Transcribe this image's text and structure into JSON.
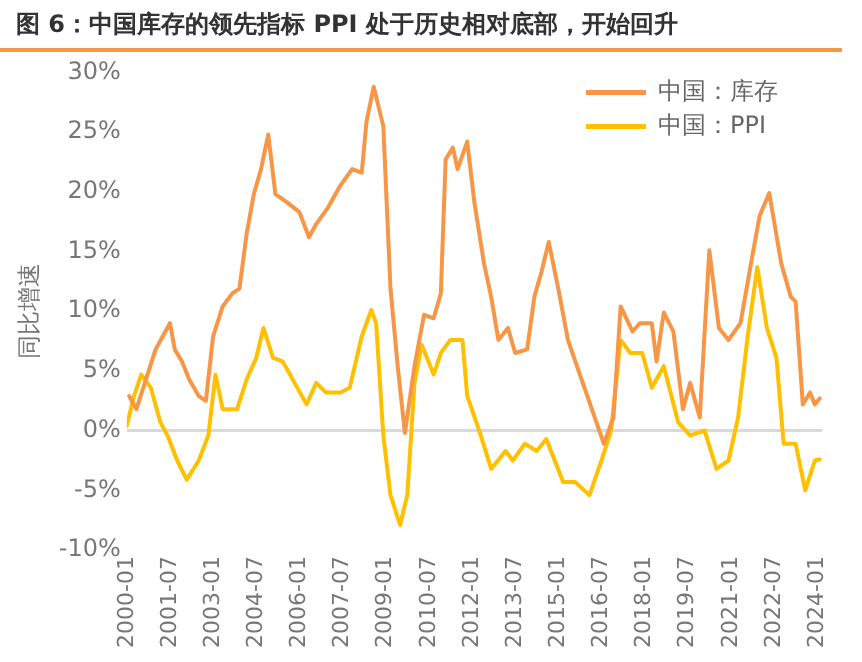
{
  "chart_data": {
    "type": "line",
    "title": "图 6：中国库存的领先指标 PPI 处于历史相对底部，开始回升",
    "ylabel": "同比增速",
    "legend": "top right",
    "marker": "none",
    "line_style": "solid",
    "xlim": [
      "2000-01",
      "2024-03"
    ],
    "xticks": [
      "2000-01",
      "2001-07",
      "2003-01",
      "2004-07",
      "2006-01",
      "2007-07",
      "2009-01",
      "2010-07",
      "2012-01",
      "2013-07",
      "2015-01",
      "2016-07",
      "2018-01",
      "2019-07",
      "2021-01",
      "2022-07",
      "2024-01"
    ],
    "ylim": [
      -10,
      30
    ],
    "yticks": [
      {
        "value": -10,
        "label": "-10%"
      },
      {
        "value": -5,
        "label": "-5%"
      },
      {
        "value": 0,
        "label": "0%"
      },
      {
        "value": 5,
        "label": "5%"
      },
      {
        "value": 10,
        "label": "10%"
      },
      {
        "value": 15,
        "label": "15%"
      },
      {
        "value": 20,
        "label": "20%"
      },
      {
        "value": 25,
        "label": "25%"
      },
      {
        "value": 30,
        "label": "30%"
      }
    ],
    "series": [
      {
        "name": "中国：库存",
        "color": "#f79646",
        "x": [
          "2000-02",
          "2000-05",
          "2000-09",
          "2001-01",
          "2001-04",
          "2001-07",
          "2001-09",
          "2001-12",
          "2002-03",
          "2002-07",
          "2002-10",
          "2003-01",
          "2003-05",
          "2003-09",
          "2003-12",
          "2004-03",
          "2004-06",
          "2004-09",
          "2004-12",
          "2005-03",
          "2005-08",
          "2006-01",
          "2006-05",
          "2006-08",
          "2007-01",
          "2007-06",
          "2007-11",
          "2008-03",
          "2008-05",
          "2008-08",
          "2008-12",
          "2009-03",
          "2009-06",
          "2009-09",
          "2010-01",
          "2010-05",
          "2010-09",
          "2010-12",
          "2011-02",
          "2011-05",
          "2011-07",
          "2011-11",
          "2012-02",
          "2012-06",
          "2012-09",
          "2012-12",
          "2013-04",
          "2013-07",
          "2013-12",
          "2014-03",
          "2014-06",
          "2014-09",
          "2015-01",
          "2015-05",
          "2015-10",
          "2016-03",
          "2016-08",
          "2016-12",
          "2017-03",
          "2017-08",
          "2017-11",
          "2018-04",
          "2018-06",
          "2018-09",
          "2019-01",
          "2019-05",
          "2019-08",
          "2019-12",
          "2020-04",
          "2020-08",
          "2020-12",
          "2021-05",
          "2021-10",
          "2022-01",
          "2022-05",
          "2022-10",
          "2023-02",
          "2023-04",
          "2023-07",
          "2023-10",
          "2023-12",
          "2024-02"
        ],
        "values": [
          2.9,
          1.8,
          4.3,
          6.8,
          7.9,
          9.0,
          6.8,
          5.8,
          4.3,
          2.9,
          2.5,
          7.9,
          10.4,
          11.5,
          11.9,
          16.5,
          19.8,
          21.9,
          24.8,
          19.8,
          19.1,
          18.3,
          16.2,
          17.3,
          18.7,
          20.5,
          21.9,
          21.6,
          25.9,
          28.8,
          25.5,
          11.9,
          5.4,
          -0.2,
          5.4,
          9.7,
          9.4,
          11.5,
          22.7,
          23.7,
          21.9,
          24.2,
          19.1,
          14.0,
          11.2,
          7.6,
          8.6,
          6.5,
          6.8,
          11.2,
          13.3,
          15.8,
          11.9,
          7.6,
          4.7,
          1.8,
          -1.1,
          1.1,
          10.4,
          8.3,
          9.0,
          9.0,
          5.8,
          9.9,
          8.3,
          1.8,
          4.0,
          1.1,
          15.1,
          8.6,
          7.6,
          9.0,
          14.7,
          18.0,
          19.9,
          14.0,
          11.2,
          10.8,
          2.2,
          3.2,
          2.2,
          2.7
        ]
      },
      {
        "name": "中国：PPI",
        "color": "#ffc000",
        "x": [
          "2000-01",
          "2000-04",
          "2000-07",
          "2000-11",
          "2001-03",
          "2001-06",
          "2001-10",
          "2002-02",
          "2002-07",
          "2002-11",
          "2003-02",
          "2003-05",
          "2003-11",
          "2004-03",
          "2004-07",
          "2004-10",
          "2005-02",
          "2005-06",
          "2005-11",
          "2006-04",
          "2006-08",
          "2006-12",
          "2007-06",
          "2007-10",
          "2008-03",
          "2008-07",
          "2008-09",
          "2008-12",
          "2009-03",
          "2009-07",
          "2009-10",
          "2010-01",
          "2010-04",
          "2010-09",
          "2010-12",
          "2011-04",
          "2011-09",
          "2011-11",
          "2012-04",
          "2012-09",
          "2013-03",
          "2013-06",
          "2013-11",
          "2014-04",
          "2014-08",
          "2015-03",
          "2015-08",
          "2016-02",
          "2016-07",
          "2016-11",
          "2017-03",
          "2017-07",
          "2017-12",
          "2018-04",
          "2018-09",
          "2019-03",
          "2019-08",
          "2020-02",
          "2020-07",
          "2020-12",
          "2021-04",
          "2021-08",
          "2021-12",
          "2022-04",
          "2022-08",
          "2022-11",
          "2023-04",
          "2023-08",
          "2023-12",
          "2024-02"
        ],
        "values": [
          0.4,
          2.9,
          4.7,
          3.6,
          0.7,
          -0.4,
          -2.5,
          -4.1,
          -2.5,
          -0.4,
          4.7,
          1.8,
          1.8,
          4.3,
          6.1,
          8.6,
          6.1,
          5.8,
          4.0,
          2.2,
          4.0,
          3.2,
          3.2,
          3.6,
          7.9,
          10.1,
          9.0,
          -0.4,
          -5.4,
          -7.9,
          -5.4,
          4.0,
          7.2,
          4.7,
          6.5,
          7.6,
          7.6,
          2.9,
          0,
          -3.2,
          -1.7,
          -2.5,
          -1.1,
          -1.7,
          -0.7,
          -4.3,
          -4.3,
          -5.4,
          -2.5,
          0,
          7.6,
          6.5,
          6.5,
          3.6,
          5.4,
          0.7,
          -0.4,
          0,
          -3.2,
          -2.5,
          1.1,
          7.9,
          13.7,
          8.6,
          6.1,
          -1.1,
          -1.1,
          -5.0,
          -2.5,
          -2.4
        ]
      }
    ]
  }
}
